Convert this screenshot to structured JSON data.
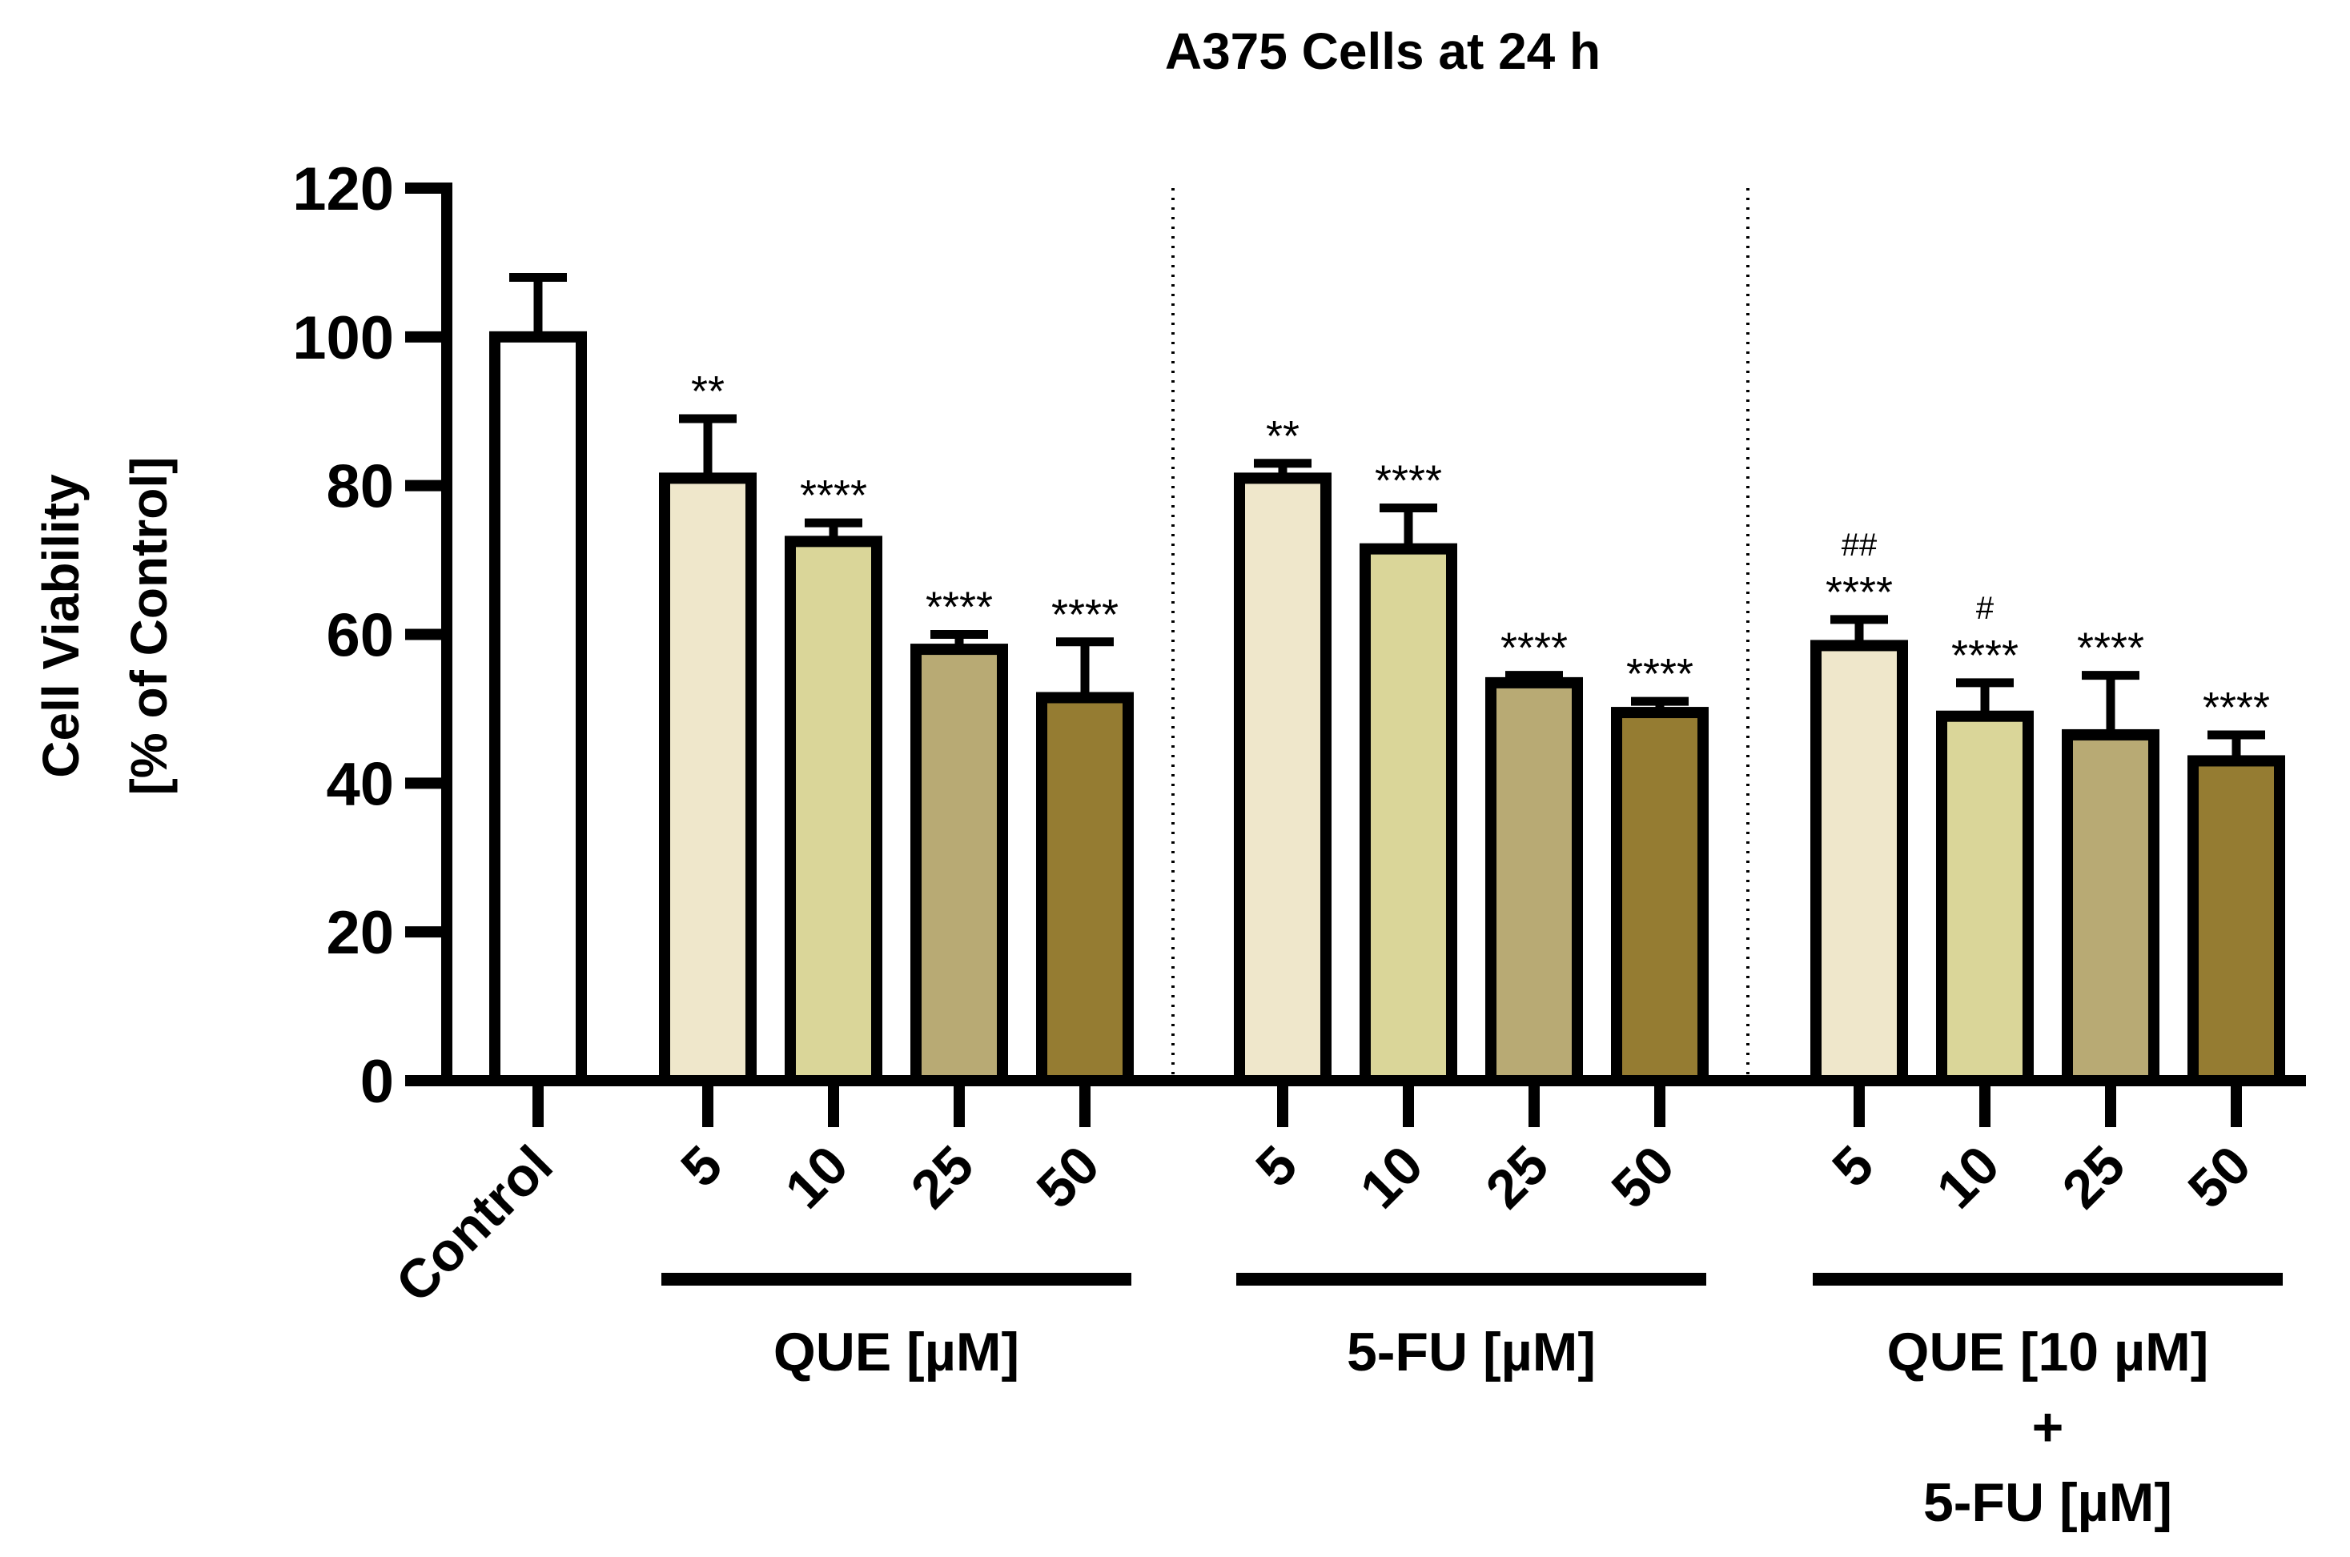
{
  "chart_data": {
    "type": "bar",
    "title": "A375 Cells at 24 h",
    "ylabel_lines": [
      "Cell Viability",
      "[% of Control]"
    ],
    "xlabel": "",
    "ylim": [
      0,
      120
    ],
    "yticks": [
      0,
      20,
      40,
      60,
      80,
      100,
      120
    ],
    "ytick_labels": [
      "0",
      "20",
      "40",
      "60",
      "80",
      "100",
      "120"
    ],
    "colors": {
      "control": "#ffffff",
      "c5": "#efe7cb",
      "c10": "#dad699",
      "c25": "#b8aa74",
      "c50": "#957c32",
      "stroke": "#000000"
    },
    "bars": [
      {
        "label": "Control",
        "group": 0,
        "value": 100,
        "error": 8,
        "color_key": "control",
        "stars": "",
        "hash": ""
      },
      {
        "label": "5",
        "group": 1,
        "value": 81,
        "error": 8,
        "color_key": "c5",
        "stars": "**",
        "hash": ""
      },
      {
        "label": "10",
        "group": 1,
        "value": 72.5,
        "error": 2.5,
        "color_key": "c10",
        "stars": "****",
        "hash": ""
      },
      {
        "label": "25",
        "group": 1,
        "value": 58,
        "error": 2,
        "color_key": "c25",
        "stars": "****",
        "hash": ""
      },
      {
        "label": "50",
        "group": 1,
        "value": 51.5,
        "error": 7.5,
        "color_key": "c50",
        "stars": "****",
        "hash": ""
      },
      {
        "label": "5",
        "group": 2,
        "value": 81,
        "error": 2,
        "color_key": "c5",
        "stars": "**",
        "hash": ""
      },
      {
        "label": "10",
        "group": 2,
        "value": 71.5,
        "error": 5.5,
        "color_key": "c10",
        "stars": "****",
        "hash": ""
      },
      {
        "label": "25",
        "group": 2,
        "value": 53.5,
        "error": 1,
        "color_key": "c25",
        "stars": "****",
        "hash": ""
      },
      {
        "label": "50",
        "group": 2,
        "value": 49.5,
        "error": 1.5,
        "color_key": "c50",
        "stars": "****",
        "hash": ""
      },
      {
        "label": "5",
        "group": 3,
        "value": 58.5,
        "error": 3.5,
        "color_key": "c5",
        "stars": "****",
        "hash": "##"
      },
      {
        "label": "10",
        "group": 3,
        "value": 49,
        "error": 4.5,
        "color_key": "c10",
        "stars": "****",
        "hash": "#"
      },
      {
        "label": "25",
        "group": 3,
        "value": 46.5,
        "error": 8,
        "color_key": "c25",
        "stars": "****",
        "hash": ""
      },
      {
        "label": "50",
        "group": 3,
        "value": 43,
        "error": 3.5,
        "color_key": "c50",
        "stars": "****",
        "hash": ""
      }
    ],
    "group_labels": [
      {
        "group": 1,
        "lines": [
          "QUE [µM]"
        ]
      },
      {
        "group": 2,
        "lines": [
          "5-FU [µM]"
        ]
      },
      {
        "group": 3,
        "lines": [
          "QUE [10 µM]",
          "+",
          "5-FU [µM]"
        ]
      }
    ],
    "separators_after_group": [
      1,
      2
    ]
  }
}
